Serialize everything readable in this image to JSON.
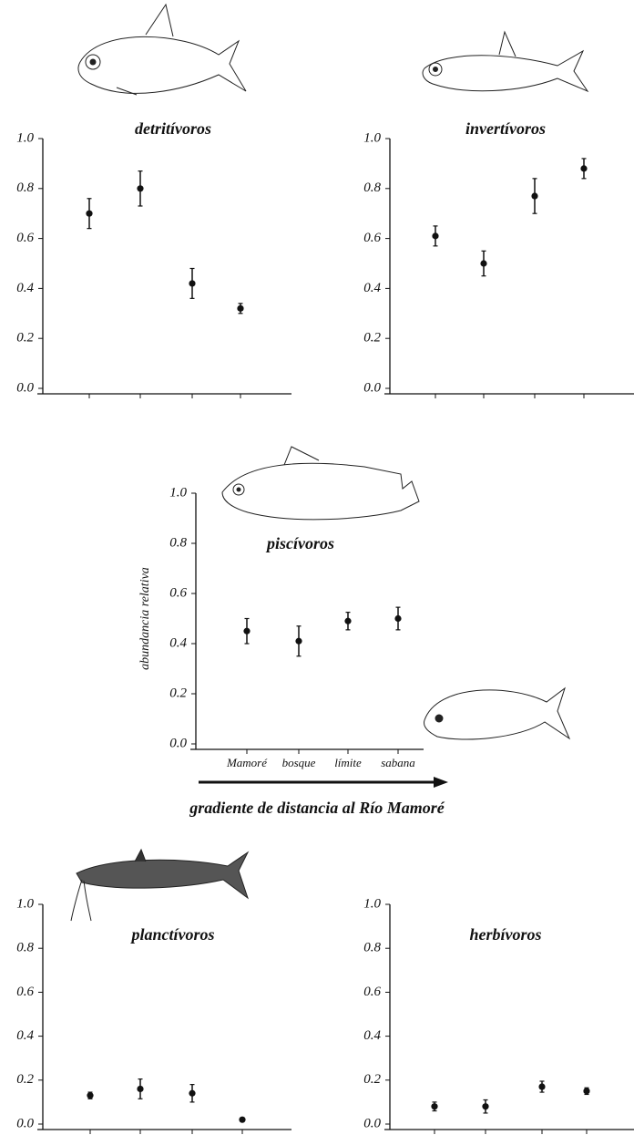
{
  "chart_data": [
    {
      "type": "scatter",
      "title": "detritívoros",
      "categories": [
        null,
        null,
        null,
        null
      ],
      "values": [
        0.7,
        0.8,
        0.42,
        0.32
      ],
      "errors": [
        0.06,
        0.07,
        0.06,
        0.02
      ],
      "ylim": [
        0,
        1
      ],
      "yticks": [
        {
          "value": 0,
          "label": "0.0"
        },
        0.2,
        0.4,
        0.6,
        0.8,
        {
          "value": 1,
          "label": "1.0"
        }
      ],
      "color": "#111111"
    },
    {
      "type": "scatter",
      "title": "invertívoros",
      "categories": [
        null,
        null,
        null,
        null
      ],
      "values": [
        0.61,
        0.5,
        0.77,
        0.88
      ],
      "errors": [
        0.04,
        0.05,
        0.07,
        0.04
      ],
      "ylim": [
        0,
        1
      ],
      "yticks": [
        {
          "value": 0,
          "label": "0.0"
        },
        0.2,
        0.4,
        0.6,
        0.8,
        {
          "value": 1,
          "label": "1.0"
        }
      ],
      "color": "#111111"
    },
    {
      "type": "scatter",
      "title": "piscívoros",
      "ylabel": "abundancia relativa",
      "xlabel": "gradiente de distancia al Río Mamoré",
      "categories": [
        "Mamoré",
        "bosque",
        "límite",
        "sabana"
      ],
      "values": [
        0.45,
        0.41,
        0.49,
        0.5
      ],
      "errors": [
        0.05,
        0.06,
        0.035,
        0.045
      ],
      "ylim": [
        0,
        1
      ],
      "yticks": [
        {
          "value": 0,
          "label": "0.0"
        },
        0.2,
        0.4,
        0.6,
        0.8,
        {
          "value": 1,
          "label": "1.0"
        }
      ],
      "color": "#111111"
    },
    {
      "type": "scatter",
      "title": "planctívoros",
      "categories": [
        null,
        null,
        null,
        null
      ],
      "values": [
        0.13,
        0.16,
        0.14,
        0.02
      ],
      "errors": [
        0.015,
        0.045,
        0.04,
        0.005
      ],
      "ylim": [
        0,
        1
      ],
      "yticks": [
        {
          "value": 0,
          "label": "0.0"
        },
        0.2,
        0.4,
        0.6,
        0.8,
        {
          "value": 1,
          "label": "1.0"
        }
      ],
      "color": "#111111"
    },
    {
      "type": "scatter",
      "title": "herbívoros",
      "categories": [
        null,
        null,
        null,
        null
      ],
      "values": [
        0.08,
        0.08,
        0.17,
        0.15
      ],
      "errors": [
        0.02,
        0.03,
        0.025,
        0.015
      ],
      "ylim": [
        0,
        1
      ],
      "yticks": [
        {
          "value": 0,
          "label": "0.0"
        },
        0.2,
        0.4,
        0.6,
        0.8,
        {
          "value": 1,
          "label": "1.0"
        }
      ],
      "color": "#111111"
    }
  ]
}
